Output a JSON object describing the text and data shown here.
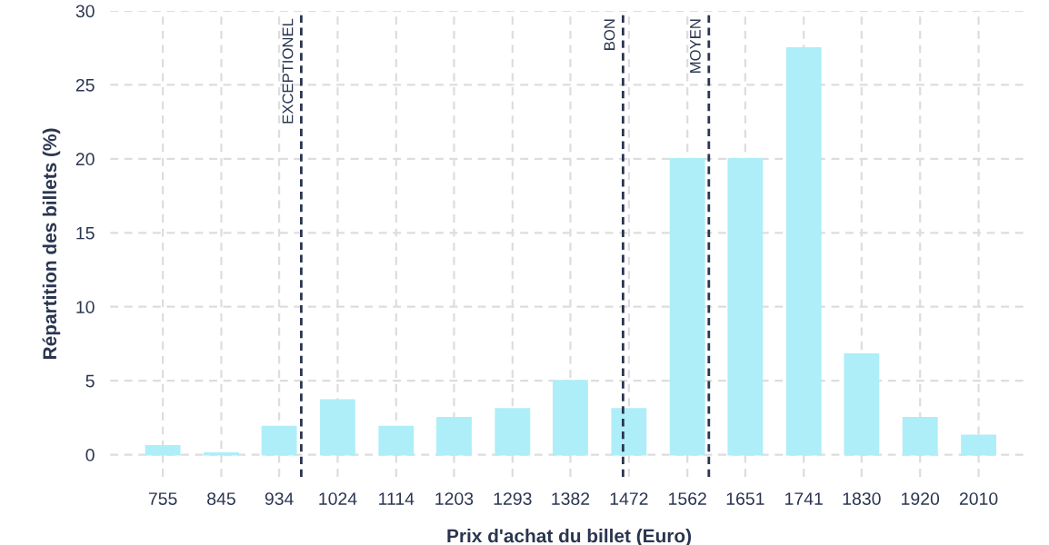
{
  "chart_data": {
    "type": "bar",
    "xlabel": "Prix d'achat du billet (Euro)",
    "ylabel": "Répartition des billets (%)",
    "x": [
      755,
      845,
      934,
      1024,
      1114,
      1203,
      1293,
      1382,
      1472,
      1562,
      1651,
      1741,
      1830,
      1920,
      2010
    ],
    "values": [
      0.6,
      0.1,
      1.9,
      3.7,
      1.9,
      2.5,
      3.1,
      5.0,
      3.1,
      20,
      20,
      27.5,
      6.8,
      2.5,
      1.3
    ],
    "color": "#aeeef8",
    "xlim": [
      674,
      2086
    ],
    "xticks": [
      755,
      845,
      934,
      1024,
      1114,
      1203,
      1293,
      1382,
      1472,
      1562,
      1651,
      1741,
      1830,
      1920,
      2010
    ],
    "ylim": [
      -1.5,
      30
    ],
    "yticks": [
      0,
      5,
      10,
      15,
      20,
      25,
      30
    ],
    "grid": true,
    "ref_lines": [
      {
        "axis": "x",
        "value": 968,
        "label": "EXCEPTIONEL",
        "color": "#2a3550",
        "line_style": "dashed"
      },
      {
        "axis": "x",
        "value": 1463,
        "label": "BON",
        "color": "#2a3550",
        "line_style": "dashed"
      },
      {
        "axis": "x",
        "value": 1595,
        "label": "MOYEN",
        "color": "#2a3550",
        "line_style": "dashed"
      }
    ]
  }
}
